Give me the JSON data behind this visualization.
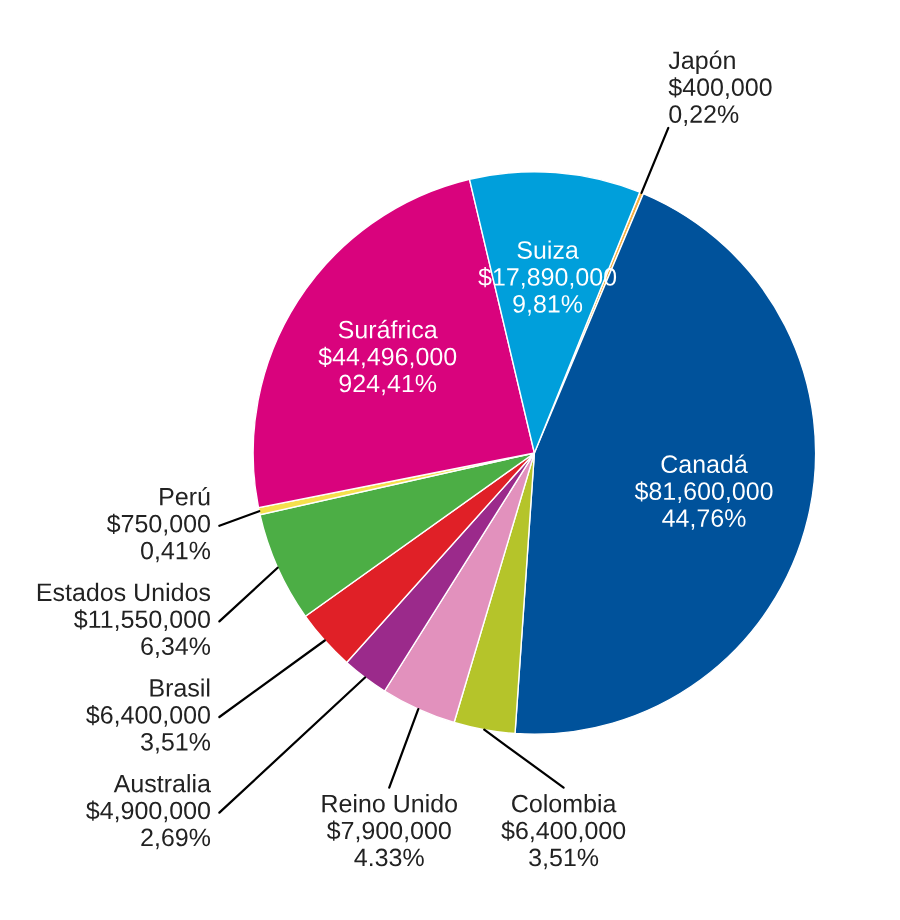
{
  "chart_data": {
    "type": "pie",
    "categories": [
      "Japón",
      "Canadá",
      "Colombia",
      "Reino Unido",
      "Australia",
      "Brasil",
      "Estados Unidos",
      "Perú",
      "Suráfrica",
      "Suiza"
    ],
    "values": [
      400000,
      81600000,
      6400000,
      7900000,
      4900000,
      6400000,
      11550000,
      750000,
      44496000,
      17890000
    ],
    "colors": [
      "#f5b041",
      "#00529b",
      "#b5c42a",
      "#e291bd",
      "#9b2a8b",
      "#e02027",
      "#4cae45",
      "#f5e04d",
      "#d9037d",
      "#009fdb"
    ],
    "value_labels": [
      "$400,000\n0,22%",
      "$81,600,000\n44,76%",
      "$6,400,000\n3,51%",
      "$7,900,000\n4.33%",
      "$4,900,000\n2,69%",
      "$6,400,000\n3,51%",
      "$11,550,000\n6,34%",
      "$750,000\n0,41%",
      "$44,496,000\n924,41%",
      "$17,890,000\n9,81%"
    ],
    "legend": false
  }
}
